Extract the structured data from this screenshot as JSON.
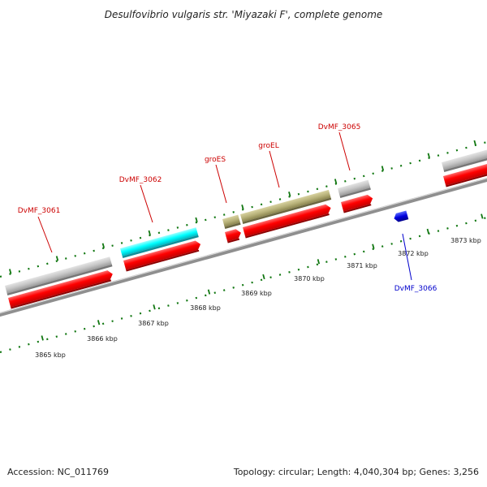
{
  "title": "Desulfovibrio vulgaris str. 'Miyazaki F', complete genome",
  "footer": {
    "accession": "Accession: NC_011769",
    "summary": "Topology: circular; Length: 4,040,304 bp; Genes: 3,256"
  },
  "colors": {
    "backbone": "#888888",
    "cds_forward": "#ff0000",
    "cds_reverse": "#0000dd",
    "orf_grey": "#c8c8c8",
    "orf_cyan": "#00ffff",
    "orf_olive": "#b8b27a",
    "tick_green": "#117711",
    "label_red": "#cc0000",
    "label_blue": "#0000cc"
  },
  "scale": {
    "labels": [
      "3865 kbp",
      "3866 kbp",
      "3867 kbp",
      "3868 kbp",
      "3869 kbp",
      "3870 kbp",
      "3871 kbp",
      "3872 kbp",
      "3873 kbp"
    ]
  },
  "genes": [
    {
      "id": "dvmf3061",
      "label": "DvMF_3061",
      "strand": "forward",
      "label_color": "#cc0000"
    },
    {
      "id": "dvmf3062",
      "label": "DvMF_3062",
      "strand": "forward",
      "label_color": "#cc0000"
    },
    {
      "id": "groes",
      "label": "groES",
      "strand": "forward",
      "label_color": "#cc0000"
    },
    {
      "id": "groel",
      "label": "groEL",
      "strand": "forward",
      "label_color": "#cc0000"
    },
    {
      "id": "dvmf3065",
      "label": "DvMF_3065",
      "strand": "forward",
      "label_color": "#cc0000"
    },
    {
      "id": "dvmf3066",
      "label": "DvMF_3066",
      "strand": "reverse",
      "label_color": "#0000cc"
    }
  ]
}
